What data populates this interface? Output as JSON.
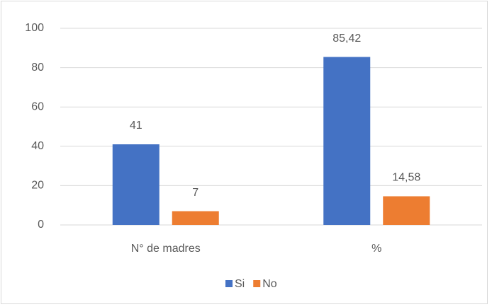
{
  "chart_data": {
    "type": "bar",
    "categories": [
      "N° de madres",
      "%"
    ],
    "series": [
      {
        "name": "Si",
        "color": "#4472c4",
        "values": [
          41,
          85.42
        ],
        "value_labels": [
          "41",
          "85,42"
        ]
      },
      {
        "name": "No",
        "color": "#ed7d31",
        "values": [
          7,
          14.58
        ],
        "value_labels": [
          "7",
          "14,58"
        ]
      }
    ],
    "ylim": [
      0,
      100
    ],
    "yticks": [
      0,
      20,
      40,
      60,
      80,
      100
    ],
    "grid": true,
    "legend": "bottom"
  }
}
